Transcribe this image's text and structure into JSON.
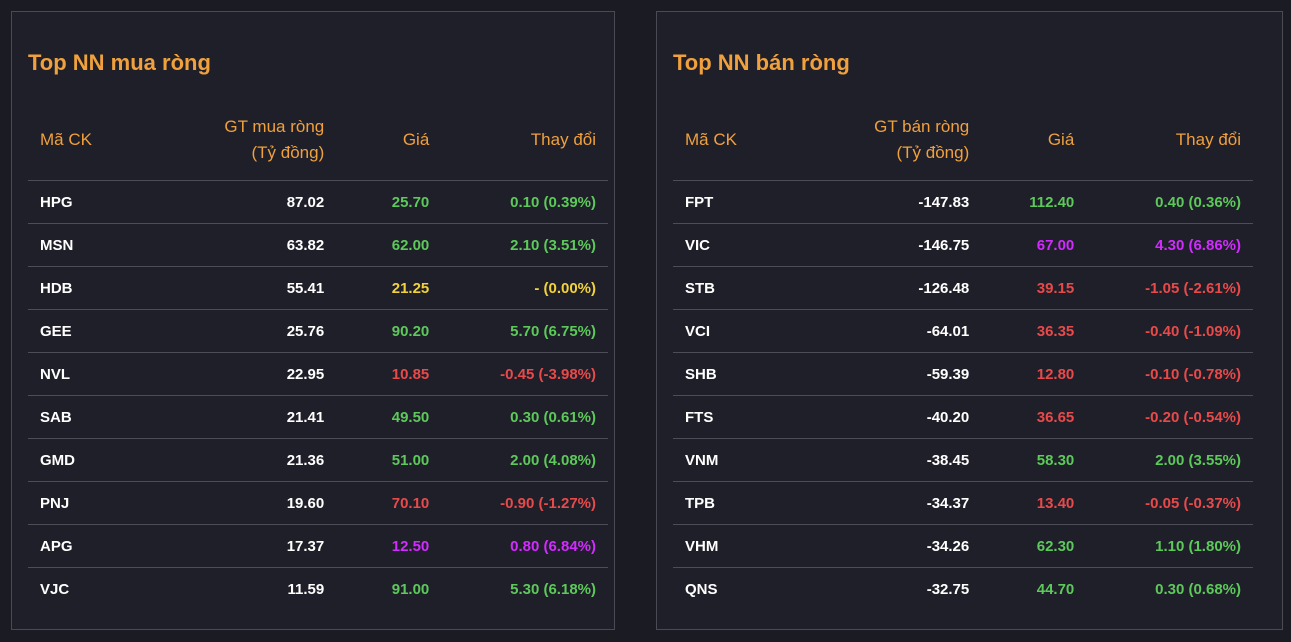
{
  "buy_panel": {
    "title": "Top NN mua ròng",
    "headers": {
      "code": "Mã CK",
      "value_line1": "GT mua ròng",
      "value_line2": "(Tỷ đồng)",
      "price": "Giá",
      "change": "Thay đổi"
    },
    "rows": [
      {
        "code": "HPG",
        "value": "87.02",
        "price": "25.70",
        "change": "0.10 (0.39%)",
        "status": "up"
      },
      {
        "code": "MSN",
        "value": "63.82",
        "price": "62.00",
        "change": "2.10 (3.51%)",
        "status": "up"
      },
      {
        "code": "HDB",
        "value": "55.41",
        "price": "21.25",
        "change": "- (0.00%)",
        "status": "ref"
      },
      {
        "code": "GEE",
        "value": "25.76",
        "price": "90.20",
        "change": "5.70 (6.75%)",
        "status": "up"
      },
      {
        "code": "NVL",
        "value": "22.95",
        "price": "10.85",
        "change": "-0.45 (-3.98%)",
        "status": "down"
      },
      {
        "code": "SAB",
        "value": "21.41",
        "price": "49.50",
        "change": "0.30 (0.61%)",
        "status": "up"
      },
      {
        "code": "GMD",
        "value": "21.36",
        "price": "51.00",
        "change": "2.00 (4.08%)",
        "status": "up"
      },
      {
        "code": "PNJ",
        "value": "19.60",
        "price": "70.10",
        "change": "-0.90 (-1.27%)",
        "status": "down"
      },
      {
        "code": "APG",
        "value": "17.37",
        "price": "12.50",
        "change": "0.80 (6.84%)",
        "status": "ceil"
      },
      {
        "code": "VJC",
        "value": "11.59",
        "price": "91.00",
        "change": "5.30 (6.18%)",
        "status": "up"
      }
    ]
  },
  "sell_panel": {
    "title": "Top NN bán ròng",
    "headers": {
      "code": "Mã CK",
      "value_line1": "GT bán ròng",
      "value_line2": "(Tỷ đồng)",
      "price": "Giá",
      "change": "Thay đổi"
    },
    "rows": [
      {
        "code": "FPT",
        "value": "-147.83",
        "price": "112.40",
        "change": "0.40 (0.36%)",
        "status": "up"
      },
      {
        "code": "VIC",
        "value": "-146.75",
        "price": "67.00",
        "change": "4.30 (6.86%)",
        "status": "ceil"
      },
      {
        "code": "STB",
        "value": "-126.48",
        "price": "39.15",
        "change": "-1.05 (-2.61%)",
        "status": "down"
      },
      {
        "code": "VCI",
        "value": "-64.01",
        "price": "36.35",
        "change": "-0.40 (-1.09%)",
        "status": "down"
      },
      {
        "code": "SHB",
        "value": "-59.39",
        "price": "12.80",
        "change": "-0.10 (-0.78%)",
        "status": "down"
      },
      {
        "code": "FTS",
        "value": "-40.20",
        "price": "36.65",
        "change": "-0.20 (-0.54%)",
        "status": "down"
      },
      {
        "code": "VNM",
        "value": "-38.45",
        "price": "58.30",
        "change": "2.00 (3.55%)",
        "status": "up"
      },
      {
        "code": "TPB",
        "value": "-34.37",
        "price": "13.40",
        "change": "-0.05 (-0.37%)",
        "status": "down"
      },
      {
        "code": "VHM",
        "value": "-34.26",
        "price": "62.30",
        "change": "1.10 (1.80%)",
        "status": "up"
      },
      {
        "code": "QNS",
        "value": "-32.75",
        "price": "44.70",
        "change": "0.30 (0.68%)",
        "status": "up"
      }
    ]
  }
}
